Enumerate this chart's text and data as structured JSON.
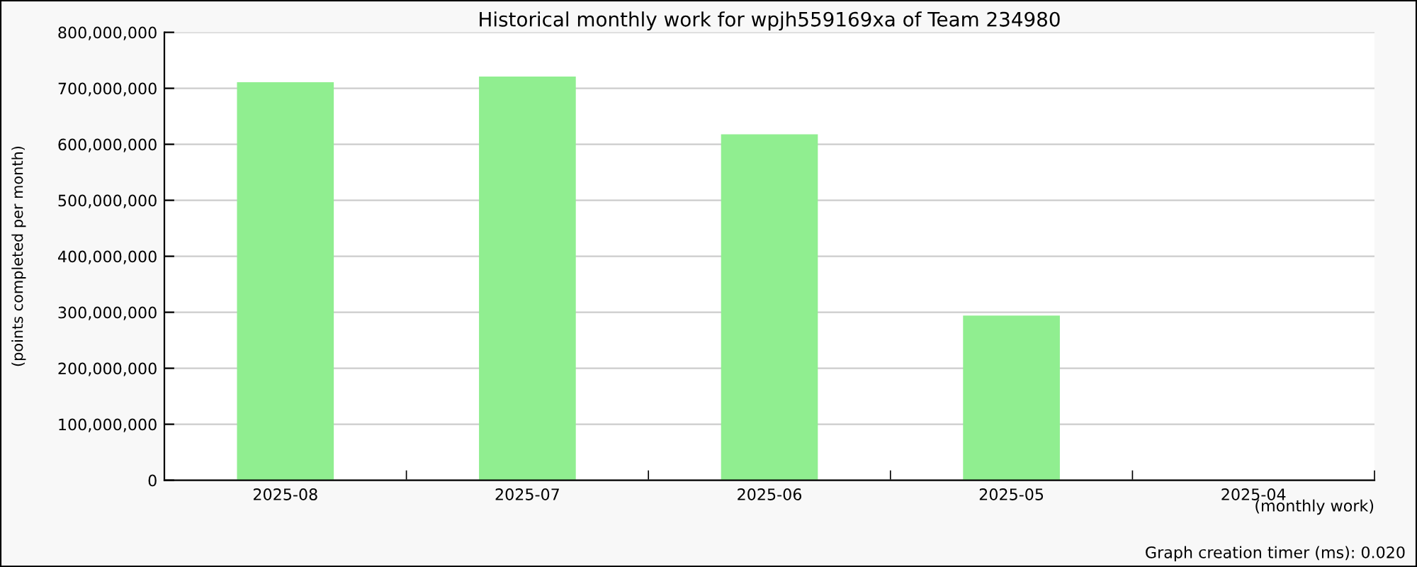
{
  "chart_data": {
    "type": "bar",
    "title": "Historical monthly work for wpjh559169xa of Team 234980",
    "xlabel": "(monthly work)",
    "ylabel": "(points completed per month)",
    "categories": [
      "2025-08",
      "2025-07",
      "2025-06",
      "2025-05",
      "2025-04"
    ],
    "values": [
      711000000,
      721000000,
      618000000,
      294000000,
      0
    ],
    "color": "#90ee90",
    "ylim": [
      0,
      800000000
    ],
    "yticks": [
      {
        "value": 0,
        "label": "0"
      },
      {
        "value": 100000000,
        "label": "100,000,000"
      },
      {
        "value": 200000000,
        "label": "200,000,000"
      },
      {
        "value": 300000000,
        "label": "300,000,000"
      },
      {
        "value": 400000000,
        "label": "400,000,000"
      },
      {
        "value": 500000000,
        "label": "500,000,000"
      },
      {
        "value": 600000000,
        "label": "600,000,000"
      },
      {
        "value": 700000000,
        "label": "700,000,000"
      },
      {
        "value": 800000000,
        "label": "800,000,000"
      }
    ],
    "grid": "y",
    "legend": false,
    "annotations": [
      "Graph creation timer (ms): 0.020"
    ]
  }
}
